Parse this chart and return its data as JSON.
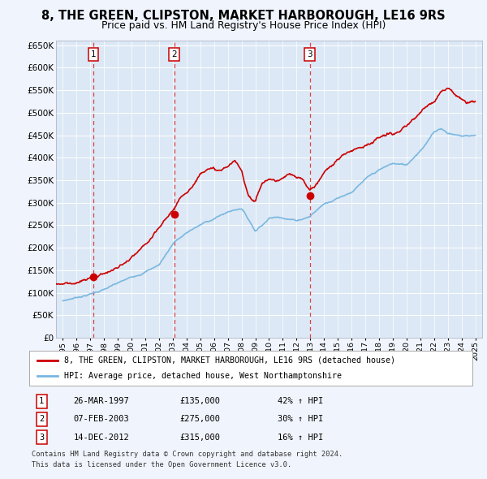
{
  "title": "8, THE GREEN, CLIPSTON, MARKET HARBOROUGH, LE16 9RS",
  "subtitle": "Price paid vs. HM Land Registry's House Price Index (HPI)",
  "background_color": "#f0f4fc",
  "plot_bg_color": "#dce8f5",
  "hpi_color": "#7ab8e0",
  "price_color": "#cc0000",
  "sale_marker_color": "#cc0000",
  "dashed_line_color": "#dd4444",
  "legend_label_price": "8, THE GREEN, CLIPSTON, MARKET HARBOROUGH, LE16 9RS (detached house)",
  "legend_label_hpi": "HPI: Average price, detached house, West Northamptonshire",
  "ytick_labels": [
    "£0",
    "£50K",
    "£100K",
    "£150K",
    "£200K",
    "£250K",
    "£300K",
    "£350K",
    "£400K",
    "£450K",
    "£500K",
    "£550K",
    "£600K",
    "£650K"
  ],
  "ytick_values": [
    0,
    50000,
    100000,
    150000,
    200000,
    250000,
    300000,
    350000,
    400000,
    450000,
    500000,
    550000,
    600000,
    650000
  ],
  "sales": [
    {
      "num": 1,
      "date_x": 1997.23,
      "price": 135000,
      "label": "26-MAR-1997",
      "amount": "£135,000",
      "change": "42% ↑ HPI"
    },
    {
      "num": 2,
      "date_x": 2003.1,
      "price": 275000,
      "label": "07-FEB-2003",
      "amount": "£275,000",
      "change": "30% ↑ HPI"
    },
    {
      "num": 3,
      "date_x": 2012.96,
      "price": 315000,
      "label": "14-DEC-2012",
      "amount": "£315,000",
      "change": "16% ↑ HPI"
    }
  ],
  "footer_line1": "Contains HM Land Registry data © Crown copyright and database right 2024.",
  "footer_line2": "This data is licensed under the Open Government Licence v3.0.",
  "xmin": 1994.5,
  "xmax": 2025.5,
  "ymin": 0,
  "ymax": 660000
}
